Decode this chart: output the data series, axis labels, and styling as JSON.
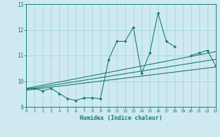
{
  "xlabel": "Humidex (Indice chaleur)",
  "bg_color": "#ceeaf0",
  "grid_color": "#a8d8e0",
  "line_color": "#1a7a6e",
  "x_data": [
    0,
    1,
    2,
    3,
    4,
    5,
    6,
    7,
    8,
    9,
    10,
    11,
    12,
    13,
    14,
    15,
    16,
    17,
    18,
    19,
    20,
    21,
    22,
    23
  ],
  "y_main": [
    9.72,
    9.72,
    9.62,
    9.72,
    9.52,
    9.32,
    9.25,
    9.35,
    9.35,
    9.32,
    10.85,
    11.55,
    11.55,
    12.1,
    10.3,
    11.1,
    12.65,
    11.55,
    11.35,
    null,
    11.0,
    11.1,
    11.2,
    10.6
  ],
  "reg_upper_start": 9.72,
  "reg_upper_end": 11.15,
  "reg_mid_start": 9.68,
  "reg_mid_end": 10.85,
  "reg_lower_start": 9.65,
  "reg_lower_end": 10.55,
  "ylim": [
    9.0,
    13.0
  ],
  "xlim": [
    0,
    23
  ],
  "yticks": [
    9,
    10,
    11,
    12,
    13
  ],
  "xticks": [
    0,
    1,
    2,
    3,
    4,
    5,
    6,
    7,
    8,
    9,
    10,
    11,
    12,
    13,
    14,
    15,
    16,
    17,
    18,
    19,
    20,
    21,
    22,
    23
  ]
}
